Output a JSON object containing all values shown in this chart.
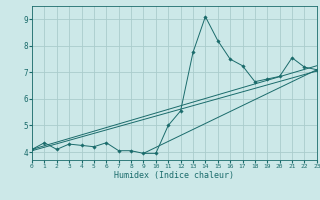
{
  "xlabel": "Humidex (Indice chaleur)",
  "bg_color": "#cce8e8",
  "line_color": "#1a6b6b",
  "grid_color": "#aacccc",
  "xlim": [
    0,
    23
  ],
  "ylim": [
    3.7,
    9.5
  ],
  "xticks": [
    0,
    1,
    2,
    3,
    4,
    5,
    6,
    7,
    8,
    9,
    10,
    11,
    12,
    13,
    14,
    15,
    16,
    17,
    18,
    19,
    20,
    21,
    22,
    23
  ],
  "yticks": [
    4,
    5,
    6,
    7,
    8,
    9
  ],
  "x": [
    0,
    1,
    2,
    3,
    4,
    5,
    6,
    7,
    8,
    9,
    10,
    11,
    12,
    13,
    14,
    15,
    16,
    17,
    18,
    19,
    20,
    21,
    22,
    23
  ],
  "y": [
    4.1,
    4.35,
    4.1,
    4.3,
    4.25,
    4.2,
    4.35,
    4.05,
    4.05,
    3.95,
    3.95,
    5.0,
    5.55,
    7.75,
    9.1,
    8.2,
    7.5,
    7.25,
    6.65,
    6.75,
    6.85,
    7.55,
    7.2,
    7.1
  ],
  "trend1_x": [
    0,
    23
  ],
  "trend1_y": [
    4.05,
    7.05
  ],
  "trend2_x": [
    0,
    23
  ],
  "trend2_y": [
    4.1,
    7.25
  ],
  "trend3_x": [
    9,
    23
  ],
  "trend3_y": [
    3.95,
    7.1
  ]
}
